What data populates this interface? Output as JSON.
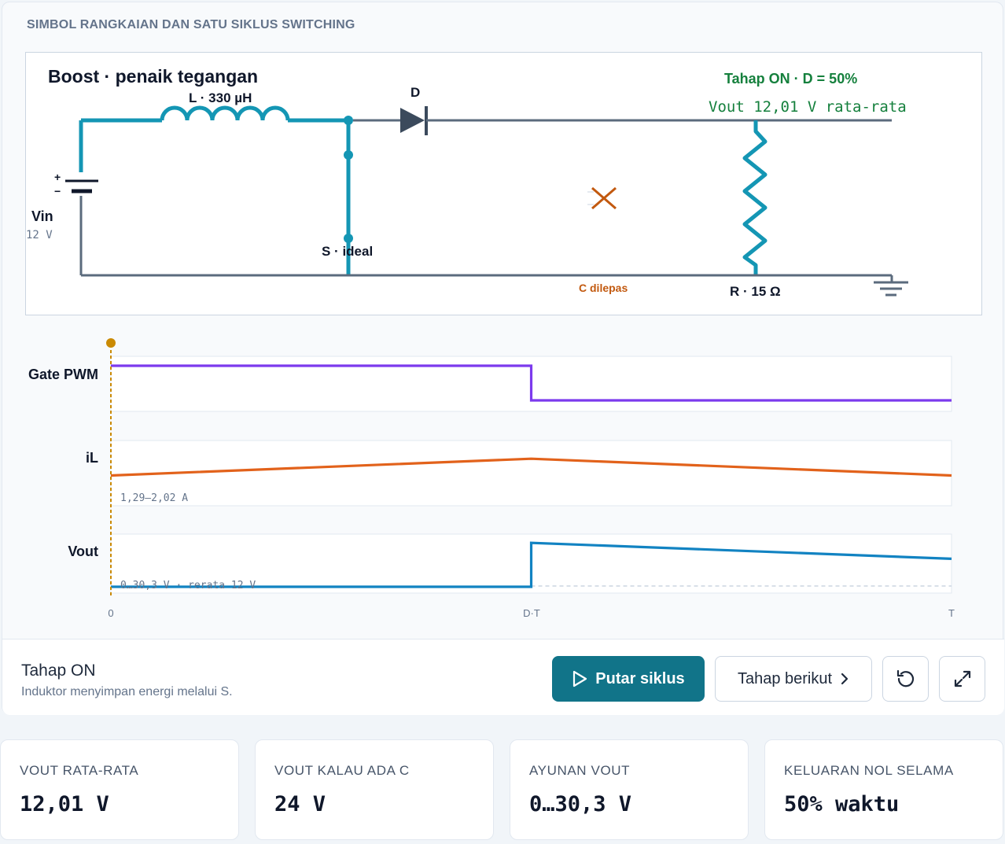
{
  "card": {
    "title": "SIMBOL RANGKAIAN DAN SATU SIKLUS SWITCHING"
  },
  "circuit": {
    "title": "Boost · penaik tegangan",
    "inductor_label": "L · 330 µH",
    "diode_label": "D",
    "switch_label": "S · ideal",
    "source_label": "Vin",
    "source_value": "12 V",
    "plus": "+",
    "minus": "−",
    "resistor_label": "R · 15 Ω",
    "capacitor_label": "C dilepas",
    "phase_label": "Tahap ON · D = 50%",
    "vout_label": "Vout 12,01 V rata-rata",
    "colors": {
      "active": "#1496b4",
      "idle": "#5b6b7d",
      "green": "#15803d",
      "cap": "#c2590f"
    }
  },
  "chart_data": [
    {
      "type": "line",
      "name": "Gate PWM",
      "title": "Gate PWM",
      "x_ticks": [
        "0",
        "D·T",
        "T"
      ],
      "points": [
        [
          0,
          1
        ],
        [
          0.5,
          1
        ],
        [
          0.5,
          0
        ],
        [
          1,
          0
        ]
      ],
      "color": "#7c3aed",
      "note": ""
    },
    {
      "type": "line",
      "name": "iL",
      "title": "iL",
      "points": [
        [
          0,
          1.29
        ],
        [
          0.5,
          2.02
        ],
        [
          1,
          1.29
        ]
      ],
      "ylim": [
        1.0,
        2.3
      ],
      "color": "#e2621b",
      "note": "1,29–2,02 A"
    },
    {
      "type": "line",
      "name": "Vout",
      "title": "Vout",
      "points": [
        [
          0,
          0
        ],
        [
          0.5,
          0
        ],
        [
          0.5,
          30.3
        ],
        [
          1,
          19.3
        ]
      ],
      "ylim": [
        0,
        32
      ],
      "average": 12,
      "color": "#1283c2",
      "note": "0…30,3 V · rerata 12 V"
    }
  ],
  "waves": {
    "tick_0": "0",
    "tick_dt": "D·T",
    "tick_t": "T"
  },
  "control": {
    "stage_title": "Tahap ON",
    "stage_desc": "Induktor menyimpan energi melalui S.",
    "play_label": "Putar siklus",
    "next_label": "Tahap berikut",
    "play_icon": "play-icon",
    "next_icon": "chevron-right-icon",
    "reset_icon": "reset-icon",
    "expand_icon": "expand-icon"
  },
  "stats": [
    {
      "label": "VOUT RATA-RATA",
      "value": "12,01 V"
    },
    {
      "label": "VOUT KALAU ADA C",
      "value": "24 V"
    },
    {
      "label": "AYUNAN VOUT",
      "value": "0…30,3 V"
    },
    {
      "label": "KELUARAN NOL SELAMA",
      "value": "50% waktu"
    }
  ]
}
